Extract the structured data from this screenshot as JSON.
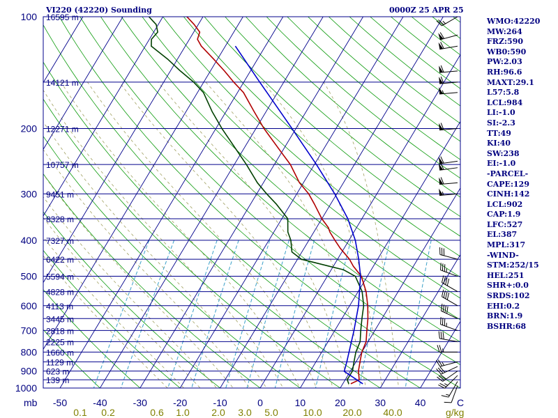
{
  "header": {
    "station_title": "VI220 (42220) Sounding",
    "time_title": "0000Z 25 APR 25"
  },
  "indices": [
    "WMO:42220",
    "MW:264",
    "FRZ:590",
    "WB0:590",
    "PW:2.03",
    "RH:96.6",
    "MAXT:29.1",
    "L57:5.8",
    "LCL:984",
    "LI:-1.0",
    "SI:-2.3",
    "TT:49",
    "KI:40",
    "SW:238",
    "EI:-1.0",
    "-PARCEL-",
    "CAPE:129",
    "CINH:142",
    "LCL:902",
    "CAP:1.9",
    "LFC:527",
    "EL:387",
    "MPL:317",
    "-WIND-",
    "STM:252/15",
    "HEL:251",
    "SHR+:0.0",
    "SRDS:102",
    "EHI:0.2",
    "BRN:1.9",
    "BSHR:68"
  ],
  "colors": {
    "isobar": "#00008b",
    "isotherm": "#00008b",
    "dry_adiabat": "#0a9a0a",
    "moist_adiabat": "#a0a060",
    "mixing_ratio": "#3aa0c8",
    "temperature": "#b00000",
    "dewpoint": "#004000",
    "parcel": "#0000cc",
    "axis_text": "#000080",
    "mixing_text": "#808000",
    "wind_barb": "#000000"
  },
  "chart_data": {
    "type": "line",
    "diagram": "skew-T log-P",
    "xlabel_unit": "C",
    "ylabel_unit": "mb",
    "pressure_ticks": [
      100,
      200,
      300,
      400,
      500,
      600,
      700,
      800,
      900,
      1000
    ],
    "pressure_tick_labels": [
      "100",
      "200",
      "300",
      "400",
      "500",
      "600",
      "700",
      "800",
      "900",
      "1000"
    ],
    "temperature_ticks": [
      -50,
      -40,
      -30,
      -20,
      -10,
      0,
      10,
      20,
      30,
      40
    ],
    "temperature_tick_labels": [
      "-50",
      "-40",
      "-30",
      "-20",
      "-10",
      "0",
      "10",
      "20",
      "30",
      "40"
    ],
    "mixing_ratio_labels": [
      "0.1",
      "0.2",
      "0.6",
      "1.0",
      "2.0",
      "3.0",
      "5.0",
      "10.0",
      "20.0",
      "40.0"
    ],
    "mixing_ratio_unit": "g/kg",
    "height_labels": [
      {
        "p": 100,
        "label": "16595 m"
      },
      {
        "p": 150,
        "label": "14121 m"
      },
      {
        "p": 200,
        "label": "12271 m"
      },
      {
        "p": 250,
        "label": "10757 m"
      },
      {
        "p": 300,
        "label": "9451 m"
      },
      {
        "p": 350,
        "label": "8328 m"
      },
      {
        "p": 400,
        "label": "7327 m"
      },
      {
        "p": 450,
        "label": "6422 m"
      },
      {
        "p": 500,
        "label": "5594 m"
      },
      {
        "p": 550,
        "label": "4828 m"
      },
      {
        "p": 600,
        "label": "4113 m"
      },
      {
        "p": 650,
        "label": "3445 m"
      },
      {
        "p": 700,
        "label": "2818 m"
      },
      {
        "p": 750,
        "label": "2225 m"
      },
      {
        "p": 800,
        "label": "1660 m"
      },
      {
        "p": 850,
        "label": "1129 m"
      },
      {
        "p": 900,
        "label": "623 m"
      },
      {
        "p": 950,
        "label": "139 m"
      }
    ],
    "series": [
      {
        "key": "temperature",
        "points": [
          [
            974,
            22.0
          ],
          [
            950,
            23.5
          ],
          [
            900,
            22.0
          ],
          [
            850,
            21.0
          ],
          [
            800,
            20.0
          ],
          [
            750,
            19.5
          ],
          [
            700,
            18.0
          ],
          [
            650,
            16.5
          ],
          [
            600,
            14.5
          ],
          [
            550,
            12.0
          ],
          [
            500,
            8.5
          ],
          [
            470,
            5.0
          ],
          [
            450,
            3.0
          ],
          [
            420,
            -1.0
          ],
          [
            400,
            -3.5
          ],
          [
            380,
            -6.0
          ],
          [
            375,
            -6.5
          ],
          [
            370,
            -7.0
          ],
          [
            350,
            -10.0
          ],
          [
            320,
            -14.0
          ],
          [
            300,
            -17.0
          ],
          [
            280,
            -21.0
          ],
          [
            250,
            -26.0
          ],
          [
            230,
            -30.5
          ],
          [
            200,
            -38.0
          ],
          [
            180,
            -43.0
          ],
          [
            160,
            -48.5
          ],
          [
            150,
            -52.5
          ],
          [
            140,
            -56.5
          ],
          [
            130,
            -61.0
          ],
          [
            120,
            -66.0
          ],
          [
            115,
            -68.0
          ],
          [
            110,
            -68.5
          ],
          [
            105,
            -71.0
          ],
          [
            100,
            -74.0
          ]
        ]
      },
      {
        "key": "dewpoint",
        "points": [
          [
            974,
            21.5
          ],
          [
            950,
            20.5
          ],
          [
            900,
            20.5
          ],
          [
            850,
            19.5
          ],
          [
            800,
            18.5
          ],
          [
            750,
            18.0
          ],
          [
            700,
            16.5
          ],
          [
            650,
            15.0
          ],
          [
            600,
            13.5
          ],
          [
            550,
            11.0
          ],
          [
            500,
            7.0
          ],
          [
            480,
            3.0
          ],
          [
            470,
            -1.0
          ],
          [
            460,
            -5.0
          ],
          [
            450,
            -9.0
          ],
          [
            430,
            -12.5
          ],
          [
            400,
            -14.5
          ],
          [
            380,
            -16.5
          ],
          [
            350,
            -18.5
          ],
          [
            320,
            -23.5
          ],
          [
            300,
            -27.5
          ],
          [
            280,
            -31.5
          ],
          [
            250,
            -37.0
          ],
          [
            200,
            -48.5
          ],
          [
            180,
            -53.5
          ],
          [
            160,
            -58.5
          ],
          [
            150,
            -62.5
          ],
          [
            140,
            -67.5
          ],
          [
            130,
            -72.5
          ],
          [
            120,
            -78.5
          ],
          [
            115,
            -79.5
          ],
          [
            110,
            -79.0
          ],
          [
            105,
            -80.5
          ],
          [
            100,
            -83.5
          ]
        ]
      },
      {
        "key": "parcel",
        "points": [
          [
            974,
            25.0
          ],
          [
            902,
            18.5
          ],
          [
            850,
            17.7
          ],
          [
            800,
            16.8
          ],
          [
            700,
            14.8
          ],
          [
            600,
            12.2
          ],
          [
            500,
            8.3
          ],
          [
            450,
            5.3
          ],
          [
            400,
            1.6
          ],
          [
            350,
            -3.5
          ],
          [
            300,
            -10.5
          ],
          [
            250,
            -19.5
          ],
          [
            200,
            -31.0
          ],
          [
            150,
            -46.0
          ],
          [
            120,
            -57.5
          ]
        ]
      }
    ],
    "wind_profile": {
      "unit": "knots",
      "barbs": [
        {
          "p": 985,
          "dir": 200,
          "spd": 10
        },
        {
          "p": 960,
          "dir": 210,
          "spd": 15
        },
        {
          "p": 925,
          "dir": 225,
          "spd": 25
        },
        {
          "p": 900,
          "dir": 235,
          "spd": 30
        },
        {
          "p": 875,
          "dir": 245,
          "spd": 30
        },
        {
          "p": 850,
          "dir": 255,
          "spd": 25
        },
        {
          "p": 800,
          "dir": 270,
          "spd": 25
        },
        {
          "p": 750,
          "dir": 280,
          "spd": 30
        },
        {
          "p": 700,
          "dir": 290,
          "spd": 35
        },
        {
          "p": 650,
          "dir": 295,
          "spd": 40
        },
        {
          "p": 600,
          "dir": 300,
          "spd": 40
        },
        {
          "p": 550,
          "dir": 300,
          "spd": 40
        },
        {
          "p": 500,
          "dir": 290,
          "spd": 35
        },
        {
          "p": 450,
          "dir": 285,
          "spd": 30
        },
        {
          "p": 300,
          "dir": 265,
          "spd": 55
        },
        {
          "p": 280,
          "dir": 265,
          "spd": 60
        },
        {
          "p": 255,
          "dir": 262,
          "spd": 60
        },
        {
          "p": 245,
          "dir": 262,
          "spd": 60
        },
        {
          "p": 200,
          "dir": 265,
          "spd": 60
        },
        {
          "p": 160,
          "dir": 265,
          "spd": 55
        },
        {
          "p": 150,
          "dir": 265,
          "spd": 60
        },
        {
          "p": 140,
          "dir": 265,
          "spd": 60
        },
        {
          "p": 120,
          "dir": 260,
          "spd": 60
        },
        {
          "p": 112,
          "dir": 255,
          "spd": 60
        },
        {
          "p": 100,
          "dir": 240,
          "spd": 25
        }
      ]
    }
  }
}
